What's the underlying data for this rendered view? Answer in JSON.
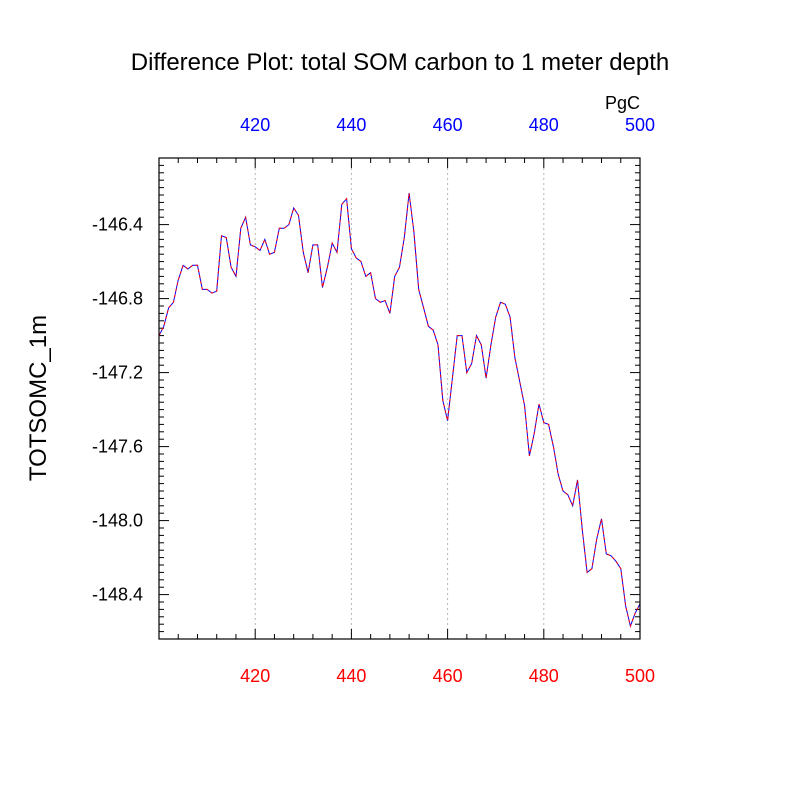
{
  "chart_data": {
    "type": "line",
    "title": "Difference Plot: total SOM carbon to 1 meter depth",
    "ylabel": "TOTSOMC_1m",
    "units": "PgC",
    "xlim": [
      400,
      500
    ],
    "ylim": [
      -148.64,
      -146.04
    ],
    "bottom_x_ticks": [
      "420",
      "440",
      "460",
      "480",
      "500"
    ],
    "top_x_ticks": [
      "420",
      "440",
      "460",
      "480",
      "500"
    ],
    "y_ticks": [
      "-146.4",
      "-146.8",
      "-147.2",
      "-147.6",
      "-148.0",
      "-148.4"
    ],
    "x_gridlines": [
      420,
      440,
      460,
      480
    ],
    "series": [
      {
        "line_colors": [
          "#0000ff",
          "#ff0000"
        ],
        "x": [
          400,
          401,
          402,
          403,
          404,
          405,
          406,
          407,
          408,
          409,
          410,
          411,
          412,
          413,
          414,
          415,
          416,
          417,
          418,
          419,
          420,
          421,
          422,
          423,
          424,
          425,
          426,
          427,
          428,
          429,
          430,
          431,
          432,
          433,
          434,
          435,
          436,
          437,
          438,
          439,
          440,
          441,
          442,
          443,
          444,
          445,
          446,
          447,
          448,
          449,
          450,
          451,
          452,
          453,
          454,
          455,
          456,
          457,
          458,
          459,
          460,
          461,
          462,
          463,
          464,
          465,
          466,
          467,
          468,
          469,
          470,
          471,
          472,
          473,
          474,
          475,
          476,
          477,
          478,
          479,
          480,
          481,
          482,
          483,
          484,
          485,
          486,
          487,
          488,
          489,
          490,
          491,
          492,
          493,
          494,
          495,
          496,
          497,
          498,
          499,
          500
        ],
        "y": [
          -147.0,
          -146.95,
          -146.85,
          -146.82,
          -146.7,
          -146.62,
          -146.64,
          -146.62,
          -146.62,
          -146.75,
          -146.75,
          -146.77,
          -146.76,
          -146.46,
          -146.47,
          -146.63,
          -146.68,
          -146.42,
          -146.36,
          -146.51,
          -146.52,
          -146.54,
          -146.48,
          -146.56,
          -146.55,
          -146.42,
          -146.42,
          -146.4,
          -146.31,
          -146.35,
          -146.55,
          -146.66,
          -146.51,
          -146.51,
          -146.74,
          -146.63,
          -146.5,
          -146.55,
          -146.29,
          -146.26,
          -146.53,
          -146.58,
          -146.6,
          -146.68,
          -146.66,
          -146.8,
          -146.82,
          -146.81,
          -146.88,
          -146.68,
          -146.63,
          -146.47,
          -146.23,
          -146.44,
          -146.75,
          -146.85,
          -146.95,
          -146.97,
          -147.05,
          -147.35,
          -147.46,
          -147.23,
          -147.0,
          -147.0,
          -147.2,
          -147.15,
          -147.0,
          -147.05,
          -147.23,
          -147.05,
          -146.9,
          -146.82,
          -146.83,
          -146.9,
          -147.12,
          -147.25,
          -147.38,
          -147.65,
          -147.53,
          -147.37,
          -147.47,
          -147.48,
          -147.6,
          -147.75,
          -147.84,
          -147.86,
          -147.92,
          -147.78,
          -148.05,
          -148.28,
          -148.26,
          -148.1,
          -147.99,
          -148.18,
          -148.19,
          -148.22,
          -148.26,
          -148.46,
          -148.57,
          -148.5,
          -148.45
        ]
      }
    ]
  }
}
